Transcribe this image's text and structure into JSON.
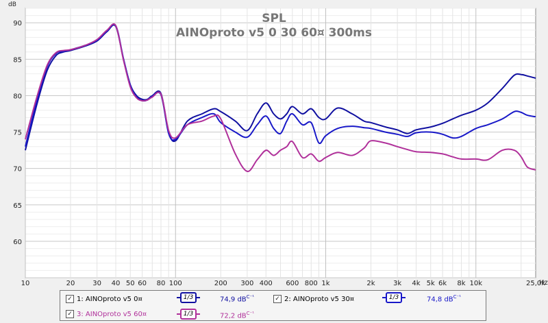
{
  "chart_data": {
    "type": "line",
    "title": "SPL",
    "subtitle": "AINOproto v5 0 30 60¤ 300ms",
    "ylabel": "dB",
    "xlabel": "Hz",
    "xscale": "log",
    "xlim": [
      10,
      25000
    ],
    "ylim": [
      55,
      92
    ],
    "grid": true,
    "x_ticks": [
      {
        "v": 10,
        "label": "10"
      },
      {
        "v": 20,
        "label": "20"
      },
      {
        "v": 30,
        "label": "30"
      },
      {
        "v": 40,
        "label": "40"
      },
      {
        "v": 50,
        "label": "50"
      },
      {
        "v": 60,
        "label": "60"
      },
      {
        "v": 80,
        "label": "80"
      },
      {
        "v": 100,
        "label": "100"
      },
      {
        "v": 200,
        "label": "200"
      },
      {
        "v": 300,
        "label": "300"
      },
      {
        "v": 400,
        "label": "400"
      },
      {
        "v": 600,
        "label": "600"
      },
      {
        "v": 800,
        "label": "800"
      },
      {
        "v": 1000,
        "label": "1k"
      },
      {
        "v": 2000,
        "label": "2k"
      },
      {
        "v": 3000,
        "label": "3k"
      },
      {
        "v": 4000,
        "label": "4k"
      },
      {
        "v": 5000,
        "label": "5k"
      },
      {
        "v": 6000,
        "label": "6k"
      },
      {
        "v": 8000,
        "label": "8k"
      },
      {
        "v": 10000,
        "label": "10k"
      },
      {
        "v": 25000,
        "label": "25,0k"
      }
    ],
    "y_ticks": [
      60,
      65,
      70,
      75,
      80,
      85,
      90
    ],
    "series": [
      {
        "name": "1: AINOproto v5 0¤",
        "color": "#1010a0",
        "x": [
          10,
          12,
          14,
          16,
          18,
          20,
          25,
          30,
          35,
          40,
          45,
          50,
          55,
          60,
          65,
          70,
          80,
          90,
          100,
          120,
          150,
          180,
          200,
          250,
          300,
          350,
          400,
          450,
          500,
          550,
          600,
          700,
          800,
          900,
          1000,
          1200,
          1500,
          1800,
          2000,
          2500,
          3000,
          3500,
          4000,
          5000,
          6000,
          7000,
          8000,
          10000,
          12000,
          15000,
          18000,
          20000,
          22000,
          25000
        ],
        "y": [
          72.5,
          79,
          83.5,
          85.5,
          86,
          86.2,
          86.8,
          87.5,
          88.8,
          89.5,
          85,
          81.5,
          80,
          79.5,
          79.5,
          80,
          80.3,
          75,
          73.8,
          76.5,
          77.5,
          78.2,
          77.8,
          76.5,
          75.2,
          77.5,
          79,
          77.5,
          76.8,
          77.5,
          78.5,
          77.5,
          78.2,
          77,
          76.8,
          78.3,
          77.5,
          76.5,
          76.3,
          75.7,
          75.3,
          74.8,
          75.3,
          75.7,
          76.2,
          76.8,
          77.3,
          78,
          79,
          81,
          82.8,
          82.9,
          82.7,
          82.4
        ]
      },
      {
        "name": "2: AINOproto v5 30¤",
        "color": "#1818c8",
        "x": [
          10,
          12,
          14,
          16,
          18,
          20,
          25,
          30,
          35,
          40,
          45,
          50,
          55,
          60,
          65,
          70,
          80,
          90,
          100,
          120,
          150,
          180,
          200,
          250,
          300,
          350,
          400,
          450,
          500,
          550,
          600,
          700,
          800,
          900,
          1000,
          1200,
          1500,
          1800,
          2000,
          2500,
          3000,
          3500,
          4000,
          5000,
          6000,
          7000,
          8000,
          10000,
          12000,
          15000,
          18000,
          20000,
          22000,
          25000
        ],
        "y": [
          73,
          79.5,
          84,
          85.8,
          86.1,
          86.3,
          86.9,
          87.6,
          88.9,
          89.6,
          85.1,
          81.4,
          79.8,
          79.3,
          79.4,
          79.9,
          80.1,
          74.8,
          74,
          76,
          77,
          77.5,
          76.3,
          75,
          74.3,
          76,
          77.2,
          75.5,
          74.8,
          76.5,
          77.5,
          76,
          76.3,
          73.5,
          74.5,
          75.5,
          75.8,
          75.6,
          75.5,
          75,
          74.7,
          74.4,
          74.9,
          75,
          74.7,
          74.2,
          74.4,
          75.5,
          76,
          76.8,
          77.8,
          77.7,
          77.3,
          77.1
        ]
      },
      {
        "name": "3: AINOproto v5 60¤",
        "color": "#b0309a",
        "x": [
          10,
          12,
          14,
          16,
          18,
          20,
          25,
          30,
          35,
          40,
          45,
          50,
          55,
          60,
          65,
          70,
          80,
          90,
          100,
          120,
          150,
          180,
          200,
          250,
          300,
          350,
          400,
          450,
          500,
          550,
          600,
          700,
          800,
          900,
          1000,
          1200,
          1500,
          1800,
          2000,
          2500,
          3000,
          3500,
          4000,
          5000,
          6000,
          7000,
          8000,
          10000,
          12000,
          15000,
          18000,
          20000,
          22000,
          25000
        ],
        "y": [
          74,
          80,
          84.2,
          85.9,
          86.2,
          86.3,
          86.9,
          87.7,
          89,
          89.6,
          84.9,
          81.2,
          79.7,
          79.3,
          79.4,
          79.8,
          80.2,
          75.2,
          74.2,
          76,
          76.5,
          77.2,
          76.8,
          72,
          69.6,
          71.2,
          72.5,
          71.8,
          72.5,
          73,
          73.7,
          71.5,
          72,
          71,
          71.5,
          72.2,
          71.8,
          72.8,
          73.8,
          73.5,
          73,
          72.6,
          72.3,
          72.2,
          72,
          71.6,
          71.3,
          71.3,
          71.2,
          72.5,
          72.5,
          71.6,
          70.2,
          69.8
        ]
      }
    ]
  },
  "legend": [
    {
      "label": "1: AINOproto v5 0¤",
      "smoothing": "1/3",
      "average": "74,9 dB",
      "unit_sup": "C⁻¹",
      "color": "#1010a0",
      "checked": true
    },
    {
      "label": "2: AINOproto v5 30¤",
      "smoothing": "1/3",
      "average": "74,8 dB",
      "unit_sup": "C⁻¹",
      "color": "#1818c8",
      "checked": true
    },
    {
      "label": "3: AINOproto v5 60¤",
      "smoothing": "1/3",
      "average": "72,2 dB",
      "unit_sup": "C⁻¹",
      "color": "#b0309a",
      "checked": true
    }
  ]
}
